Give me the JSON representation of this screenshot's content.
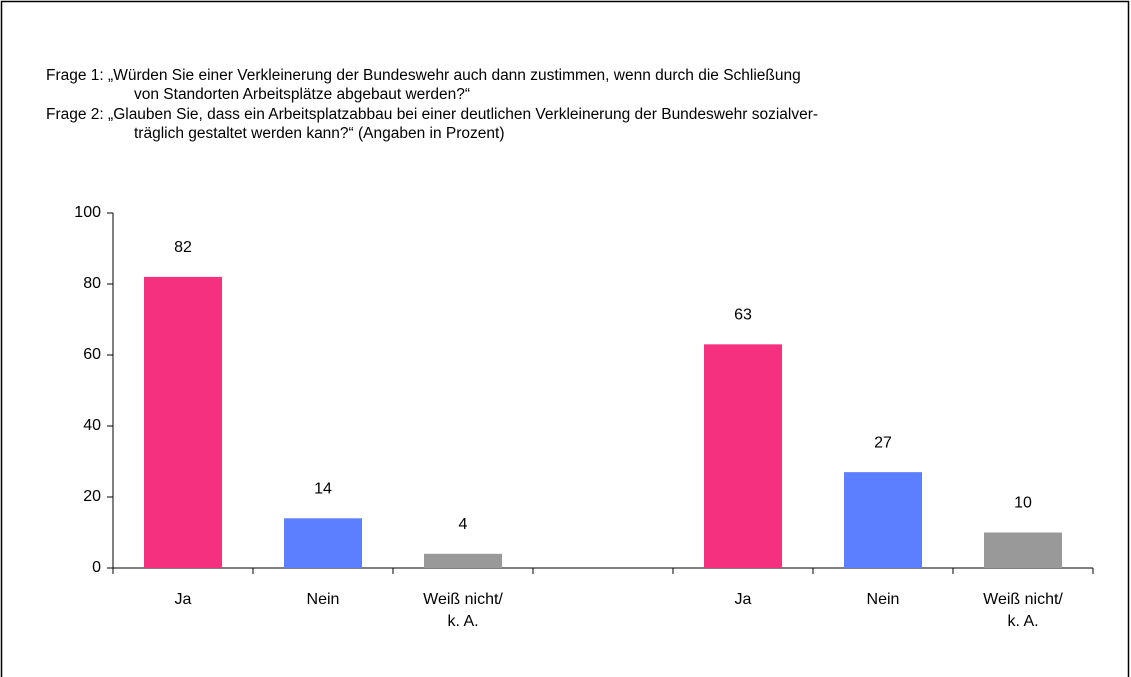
{
  "chart_data": {
    "type": "bar",
    "title": [
      "Frage 1: „Würden Sie einer Verkleinerung der Bundeswehr auch dann zustimmen, wenn durch die Schließung",
      "von Standorten Arbeitsplätze abgebaut werden?“",
      "Frage 2: „Glauben Sie, dass ein Arbeitsplatzabbau bei einer deutlichen Verkleinerung der Bundeswehr sozialver-",
      "träglich gestaltet werden kann?“ (Angaben in Prozent)"
    ],
    "categories": [
      "Ja",
      "Nein",
      [
        "Weiß nicht/",
        "k. A."
      ],
      null,
      "Ja",
      "Nein",
      [
        "Weiß nicht/",
        "k. A."
      ]
    ],
    "values": [
      82,
      14,
      4,
      null,
      63,
      27,
      10
    ],
    "colors": [
      "#f5317f",
      "#5b7fff",
      "#999999",
      null,
      "#f5317f",
      "#5b7fff",
      "#999999"
    ],
    "ylim": [
      0,
      100
    ],
    "yticks": [
      0,
      20,
      40,
      60,
      80,
      100
    ],
    "grid": false
  }
}
